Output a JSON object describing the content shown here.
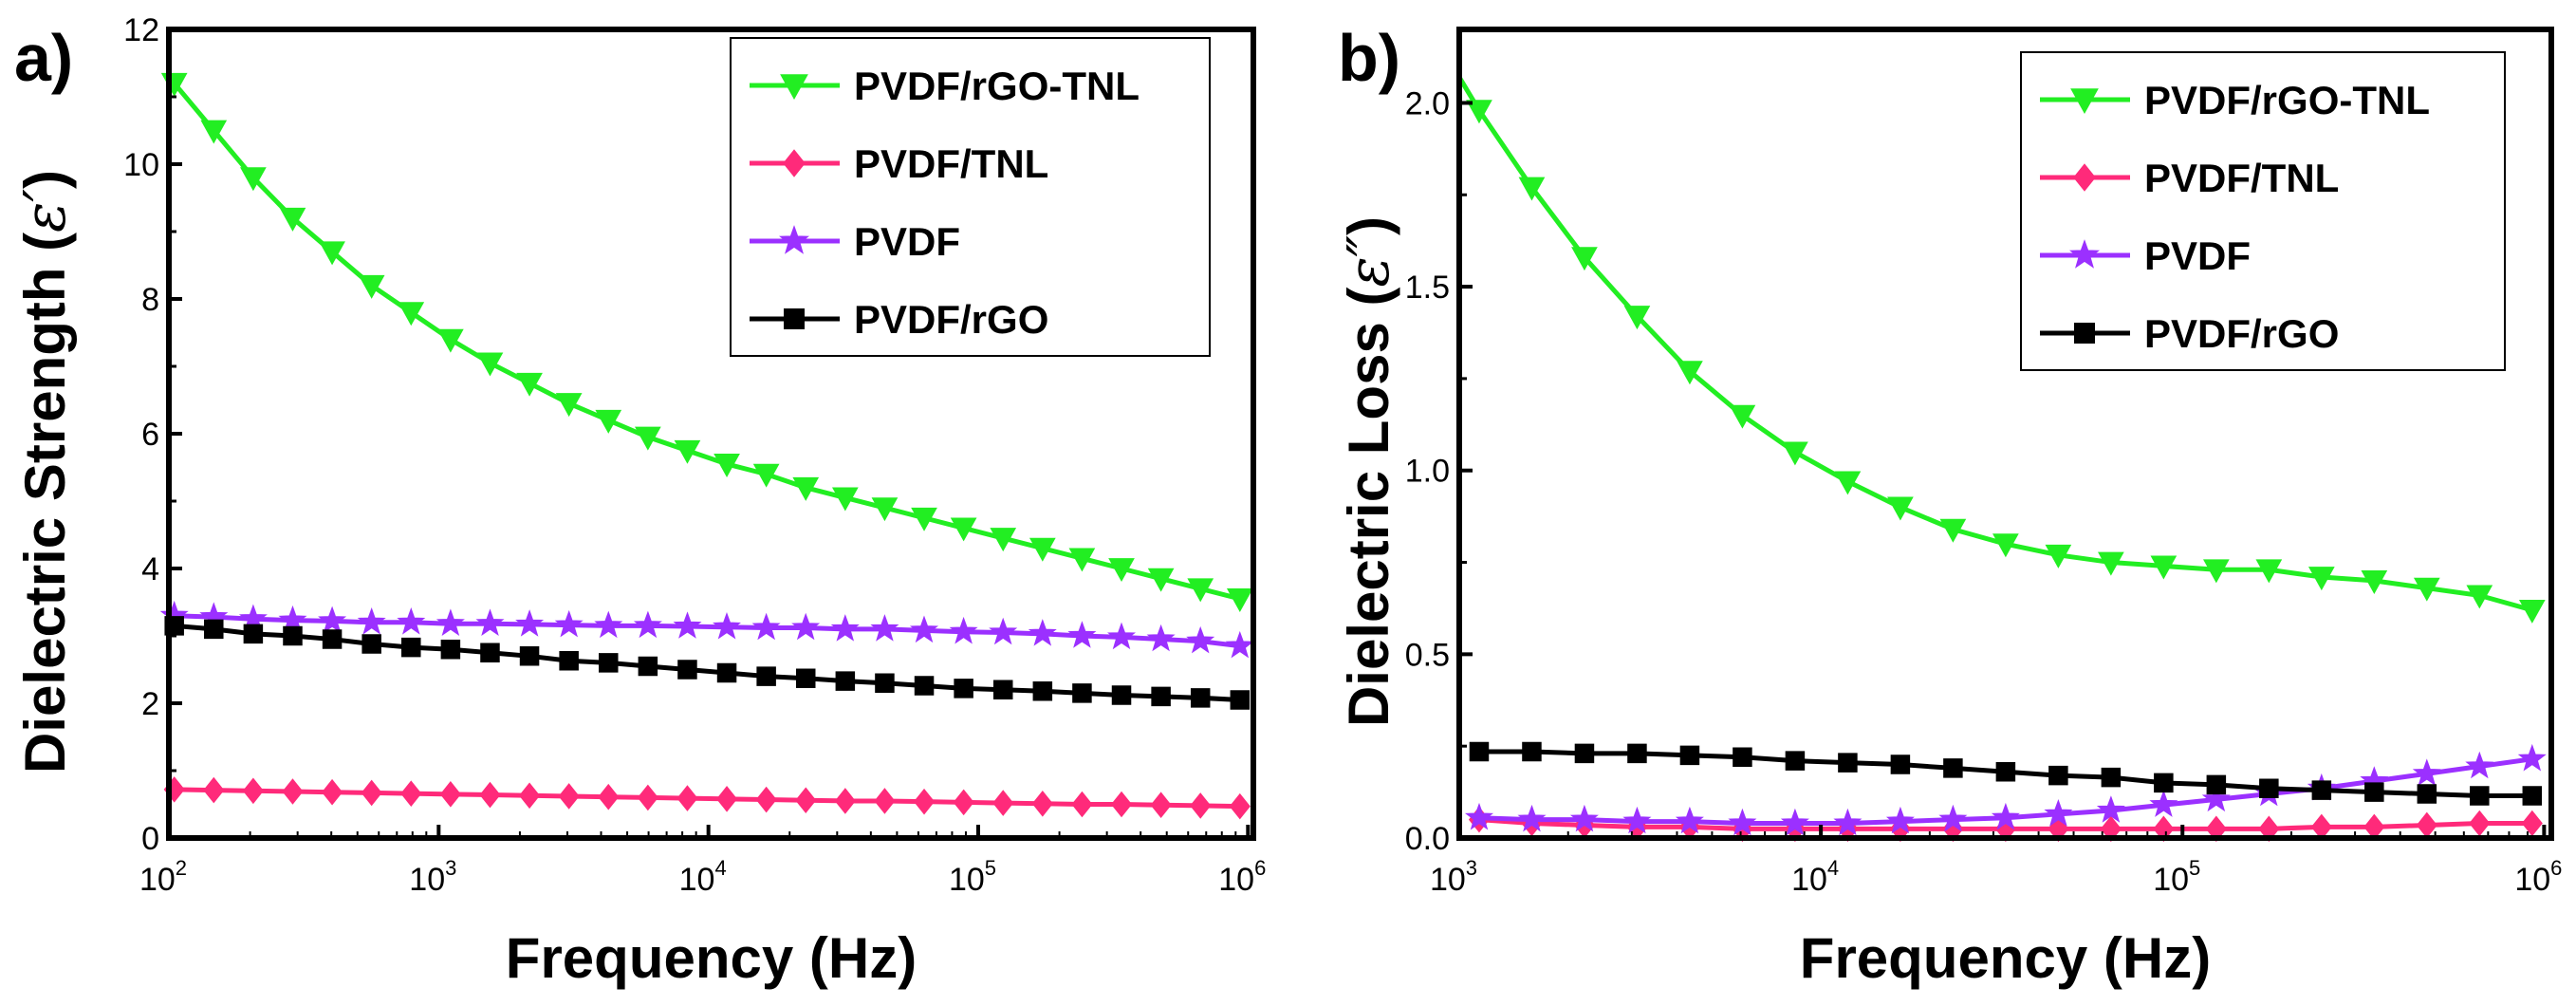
{
  "chart_data": [
    {
      "type": "line",
      "panel_label": "a)",
      "xlabel": "Frequency (Hz)",
      "ylabel": "Dielectric Strength (",
      "ylabel_symbol": "ε′",
      "ylabel_close": ")",
      "xscale": "log",
      "xlim_exp": [
        2,
        6.02
      ],
      "xticks_exp": [
        2,
        3,
        4,
        5,
        6
      ],
      "ylim": [
        0,
        12
      ],
      "yticks": [
        0,
        2,
        4,
        6,
        8,
        10,
        12
      ],
      "legend": "top-right",
      "x_exp_start": 2.02,
      "x_exp_step": 0.1463,
      "series": [
        {
          "name": "PVDF/rGO-TNL",
          "color": "#22ee22",
          "marker": "triangle-down",
          "values": [
            11.2,
            10.5,
            9.8,
            9.2,
            8.7,
            8.2,
            7.8,
            7.4,
            7.05,
            6.75,
            6.45,
            6.2,
            5.95,
            5.75,
            5.55,
            5.4,
            5.2,
            5.05,
            4.9,
            4.75,
            4.6,
            4.45,
            4.3,
            4.15,
            4.0,
            3.85,
            3.7,
            3.55
          ]
        },
        {
          "name": "PVDF/TNL",
          "color": "#ff2a7a",
          "marker": "diamond",
          "values": [
            0.72,
            0.71,
            0.7,
            0.69,
            0.68,
            0.67,
            0.66,
            0.65,
            0.64,
            0.63,
            0.62,
            0.61,
            0.6,
            0.59,
            0.58,
            0.57,
            0.56,
            0.55,
            0.55,
            0.54,
            0.53,
            0.52,
            0.51,
            0.5,
            0.5,
            0.49,
            0.48,
            0.47
          ]
        },
        {
          "name": "PVDF",
          "color": "#9b30ff",
          "marker": "star",
          "values": [
            3.3,
            3.28,
            3.25,
            3.23,
            3.22,
            3.2,
            3.2,
            3.18,
            3.18,
            3.17,
            3.16,
            3.15,
            3.15,
            3.14,
            3.13,
            3.12,
            3.12,
            3.1,
            3.1,
            3.08,
            3.06,
            3.05,
            3.03,
            3.0,
            2.98,
            2.95,
            2.92,
            2.85
          ]
        },
        {
          "name": "PVDF/rGO",
          "color": "#000000",
          "marker": "square",
          "values": [
            3.15,
            3.1,
            3.03,
            3.0,
            2.95,
            2.88,
            2.83,
            2.8,
            2.75,
            2.7,
            2.63,
            2.6,
            2.55,
            2.5,
            2.45,
            2.4,
            2.37,
            2.33,
            2.3,
            2.26,
            2.22,
            2.2,
            2.18,
            2.15,
            2.12,
            2.1,
            2.08,
            2.05
          ]
        }
      ]
    },
    {
      "type": "line",
      "panel_label": "b)",
      "xlabel": "Frequency (Hz)",
      "ylabel": "Dielectric Loss (",
      "ylabel_symbol": "ε″",
      "ylabel_close": ")",
      "xscale": "log",
      "xlim_exp": [
        3,
        6.02
      ],
      "xticks_exp": [
        3,
        4,
        5,
        6
      ],
      "ylim": [
        0,
        2.2
      ],
      "yticks": [
        0.0,
        0.5,
        1.0,
        1.5,
        2.0
      ],
      "legend": "top-right",
      "x_exp_start": 3.055,
      "x_exp_step": 0.1456,
      "series": [
        {
          "name": "PVDF/rGO-TNL",
          "color": "#22ee22",
          "marker": "triangle-down",
          "start_value": 2.07,
          "values": [
            1.98,
            1.77,
            1.58,
            1.42,
            1.27,
            1.15,
            1.05,
            0.97,
            0.9,
            0.84,
            0.8,
            0.77,
            0.75,
            0.74,
            0.73,
            0.73,
            0.71,
            0.7,
            0.68,
            0.66,
            0.62
          ]
        },
        {
          "name": "PVDF/TNL",
          "color": "#ff2a7a",
          "marker": "diamond",
          "values": [
            0.05,
            0.04,
            0.035,
            0.03,
            0.03,
            0.025,
            0.025,
            0.025,
            0.025,
            0.025,
            0.025,
            0.025,
            0.025,
            0.025,
            0.025,
            0.025,
            0.03,
            0.03,
            0.035,
            0.04,
            0.04
          ]
        },
        {
          "name": "PVDF",
          "color": "#9b30ff",
          "marker": "star",
          "values": [
            0.055,
            0.05,
            0.05,
            0.045,
            0.045,
            0.04,
            0.04,
            0.04,
            0.045,
            0.05,
            0.055,
            0.065,
            0.075,
            0.09,
            0.105,
            0.12,
            0.135,
            0.155,
            0.175,
            0.195,
            0.215
          ]
        },
        {
          "name": "PVDF/rGO",
          "color": "#000000",
          "marker": "square",
          "values": [
            0.235,
            0.235,
            0.23,
            0.23,
            0.225,
            0.22,
            0.21,
            0.205,
            0.2,
            0.19,
            0.18,
            0.17,
            0.165,
            0.15,
            0.145,
            0.135,
            0.13,
            0.125,
            0.12,
            0.115,
            0.115
          ]
        }
      ]
    }
  ]
}
